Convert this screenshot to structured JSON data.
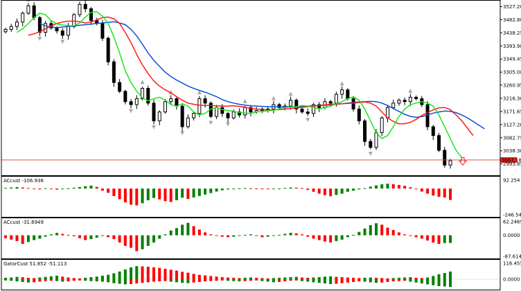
{
  "colors": {
    "bull": "#008000",
    "bear": "#ff0000",
    "candle": "#000000",
    "jaw": "#0b4fd6",
    "teeth": "#ff1a1a",
    "lips": "#19e619",
    "fractal": "#a8a8a8",
    "price_line": "#e05050",
    "price_tag_bg": "#e0201e",
    "grid_frame": "#000000"
  },
  "chart_data": [
    {
      "type": "candlestick",
      "pane": "main",
      "ylim": [
        2960,
        3545
      ],
      "y_ticks": [
        "3527.20",
        "3482.80",
        "3438.25",
        "3393.98",
        "3349.45",
        "3305.08",
        "3260.95",
        "3216.30",
        "3171.65",
        "3127.20",
        "3082.75",
        "3038.30",
        "2993.85"
      ],
      "current_price": {
        "value": 3007.18,
        "label": "3007.18"
      },
      "close": [
        3450,
        3460,
        3475,
        3505,
        3530,
        3490,
        3440,
        3470,
        3455,
        3445,
        3430,
        3460,
        3500,
        3535,
        3520,
        3480,
        3470,
        3420,
        3340,
        3270,
        3240,
        3205,
        3195,
        3215,
        3250,
        3200,
        3140,
        3170,
        3205,
        3215,
        3190,
        3120,
        3150,
        3165,
        3215,
        3200,
        3155,
        3185,
        3165,
        3150,
        3170,
        3160,
        3185,
        3170,
        3175,
        3180,
        3180,
        3195,
        3185,
        3190,
        3210,
        3180,
        3170,
        3165,
        3195,
        3185,
        3205,
        3200,
        3230,
        3245,
        3215,
        3180,
        3140,
        3070,
        3050,
        3100,
        3150,
        3185,
        3200,
        3210,
        3205,
        3220,
        3215,
        3195,
        3120,
        3090,
        3040,
        2990,
        3005
      ],
      "jaw": [
        3470,
        3462,
        3458,
        3456,
        3458,
        3460,
        3462,
        3464,
        3466,
        3468,
        3470,
        3472,
        3474,
        3476,
        3472,
        3466,
        3450,
        3428,
        3400,
        3370,
        3345,
        3325,
        3305,
        3290,
        3278,
        3268,
        3258,
        3250,
        3243,
        3237,
        3230,
        3222,
        3212,
        3205,
        3200,
        3196,
        3193,
        3191,
        3190,
        3189,
        3188,
        3188,
        3188,
        3188,
        3188,
        3188,
        3189,
        3190,
        3191,
        3192,
        3193,
        3194,
        3196,
        3198,
        3200,
        3202,
        3204,
        3205,
        3206,
        3205,
        3200,
        3192,
        3182,
        3172,
        3162,
        3155,
        3152,
        3154,
        3160,
        3166,
        3170,
        3173,
        3172,
        3168,
        3160,
        3150,
        3138,
        3125,
        3113
      ],
      "teeth": [
        3430,
        3435,
        3442,
        3452,
        3462,
        3470,
        3475,
        3478,
        3478,
        3476,
        3472,
        3475,
        3482,
        3490,
        3492,
        3486,
        3470,
        3440,
        3405,
        3365,
        3330,
        3300,
        3275,
        3258,
        3245,
        3235,
        3222,
        3210,
        3200,
        3196,
        3193,
        3192,
        3192,
        3191,
        3190,
        3190,
        3191,
        3189,
        3186,
        3182,
        3180,
        3178,
        3177,
        3177,
        3178,
        3180,
        3182,
        3184,
        3186,
        3188,
        3190,
        3192,
        3194,
        3196,
        3197,
        3198,
        3199,
        3200,
        3202,
        3204,
        3200,
        3190,
        3170,
        3150,
        3138,
        3130,
        3130,
        3135,
        3145,
        3158,
        3168,
        3177,
        3184,
        3185,
        3178,
        3160,
        3140,
        3115,
        3090
      ],
      "lips": [
        3440,
        3452,
        3470,
        3490,
        3505,
        3500,
        3480,
        3468,
        3465,
        3463,
        3462,
        3472,
        3492,
        3508,
        3510,
        3495,
        3470,
        3425,
        3370,
        3310,
        3270,
        3240,
        3218,
        3208,
        3215,
        3220,
        3210,
        3195,
        3190,
        3198,
        3190,
        3170,
        3160,
        3165,
        3180,
        3185,
        3178,
        3175,
        3172,
        3168,
        3166,
        3165,
        3170,
        3172,
        3174,
        3176,
        3180,
        3185,
        3187,
        3188,
        3192,
        3190,
        3185,
        3180,
        3185,
        3190,
        3198,
        3205,
        3215,
        3222,
        3210,
        3180,
        3140,
        3100,
        3080,
        3090,
        3120,
        3155,
        3180,
        3195,
        3200,
        3205,
        3200,
        3190,
        3160,
        3120,
        3080,
        3040,
        3015
      ]
    },
    {
      "type": "bar",
      "pane": "AC",
      "title": "ACcust -106.936",
      "ylim": [
        -246.547,
        92.254
      ],
      "y_ticks": [
        "92.254",
        "-246.547"
      ],
      "values": [
        6,
        10,
        14,
        10,
        5,
        -5,
        -8,
        4,
        -6,
        -10,
        -3,
        2,
        8,
        14,
        22,
        28,
        16,
        -20,
        -40,
        -70,
        -100,
        -130,
        -152,
        -158,
        -138,
        -110,
        -88,
        -102,
        -118,
        -126,
        -110,
        -86,
        -98,
        -84,
        -70,
        -56,
        -42,
        -28,
        -16,
        -8,
        -4,
        2,
        4,
        3,
        1,
        -2,
        -5,
        -3,
        0,
        6,
        10,
        8,
        4,
        -12,
        -30,
        -48,
        -62,
        -72,
        -60,
        -48,
        -30,
        -20,
        -8,
        4,
        18,
        30,
        40,
        46,
        42,
        34,
        26,
        12,
        -2,
        -28,
        -48,
        -66,
        -78,
        -84,
        -106.936
      ]
    },
    {
      "type": "bar",
      "pane": "AO",
      "title": "ACcust -31.6949",
      "ylim": [
        -87.6143,
        62.2469
      ],
      "y_ticks": [
        "62.2469",
        "0.0000",
        "-87.6143"
      ],
      "values": [
        -12,
        -18,
        -24,
        -36,
        -28,
        -20,
        -14,
        -6,
        4,
        10,
        6,
        2,
        -4,
        -12,
        -20,
        -16,
        -10,
        -2,
        -8,
        -16,
        -30,
        -44,
        -52,
        -66,
        -58,
        -44,
        -30,
        -14,
        4,
        20,
        30,
        44,
        52,
        38,
        24,
        12,
        4,
        -2,
        -6,
        -8,
        -6,
        -2,
        2,
        4,
        -2,
        -8,
        -6,
        -2,
        2,
        6,
        10,
        8,
        4,
        -6,
        -14,
        -20,
        -26,
        -30,
        -24,
        -18,
        -8,
        2,
        14,
        28,
        42,
        50,
        44,
        32,
        22,
        12,
        4,
        -2,
        -8,
        -14,
        -22,
        -30,
        -36,
        -32,
        -31.6949
      ]
    },
    {
      "type": "bar",
      "pane": "Gator",
      "title": "GatorCust 51.852 -51.113",
      "ylim": [
        -60,
        116.455
      ],
      "y_ticks": [
        "116.455",
        "0.0000"
      ],
      "upper": [
        10,
        12,
        16,
        14,
        10,
        8,
        12,
        16,
        20,
        24,
        18,
        12,
        8,
        6,
        10,
        14,
        18,
        24,
        30,
        40,
        52,
        66,
        80,
        88,
        86,
        84,
        80,
        76,
        70,
        64,
        58,
        50,
        44,
        36,
        30,
        26,
        22,
        18,
        14,
        12,
        10,
        8,
        10,
        12,
        10,
        8,
        6,
        8,
        10,
        12,
        14,
        16,
        12,
        10,
        12,
        14,
        18,
        20,
        16,
        14,
        12,
        10,
        8,
        10,
        12,
        10,
        8,
        6,
        8,
        10,
        12,
        14,
        10,
        8,
        12,
        22,
        34,
        42,
        51.852
      ],
      "lower": [
        -8,
        -10,
        -14,
        -18,
        -22,
        -20,
        -16,
        -12,
        -10,
        -12,
        -16,
        -14,
        -10,
        -8,
        -10,
        -12,
        -14,
        -16,
        -20,
        -26,
        -30,
        -34,
        -32,
        -28,
        -24,
        -20,
        -16,
        -14,
        -12,
        -16,
        -20,
        -24,
        -26,
        -22,
        -18,
        -14,
        -12,
        -10,
        -8,
        -10,
        -12,
        -14,
        -12,
        -10,
        -8,
        -12,
        -16,
        -20,
        -18,
        -14,
        -10,
        -8,
        -12,
        -16,
        -20,
        -24,
        -28,
        -32,
        -30,
        -26,
        -22,
        -18,
        -14,
        -16,
        -20,
        -24,
        -22,
        -18,
        -14,
        -12,
        -10,
        -16,
        -22,
        -28,
        -34,
        -40,
        -46,
        -48,
        -51.113
      ]
    }
  ]
}
